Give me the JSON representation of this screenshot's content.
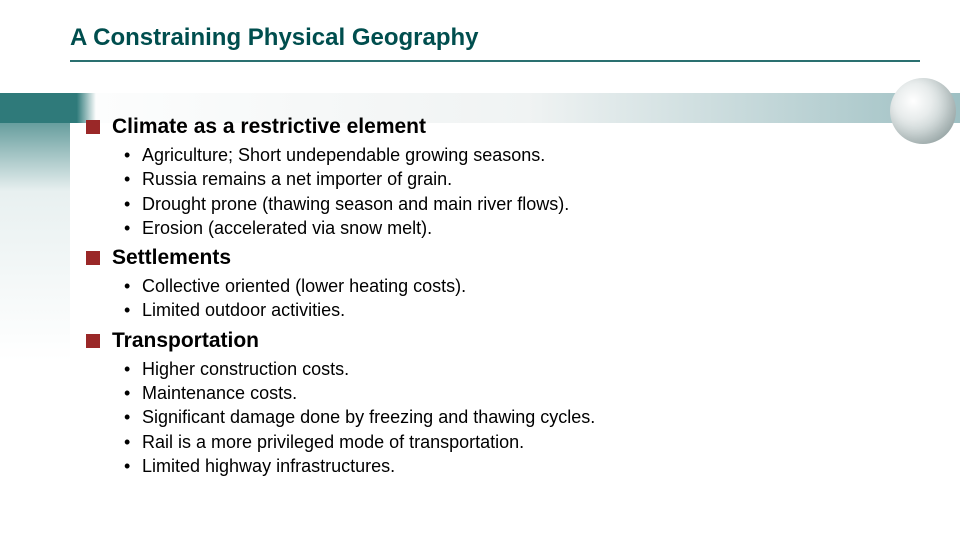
{
  "title": "A Constraining Physical Geography",
  "sections": [
    {
      "heading": "Climate as a restrictive element",
      "bullets": [
        "Agriculture; Short undependable growing seasons.",
        "Russia remains a net importer of grain.",
        "Drought prone (thawing season and main river flows).",
        "Erosion (accelerated via snow melt)."
      ]
    },
    {
      "heading": "Settlements",
      "bullets": [
        "Collective oriented (lower heating costs).",
        "Limited outdoor activities."
      ]
    },
    {
      "heading": "Transportation",
      "bullets": [
        "Higher construction costs.",
        "Maintenance costs.",
        "Significant damage done by freezing and thawing cycles.",
        "Rail is a more privileged mode of transportation.",
        "Limited highway infrastructures."
      ]
    }
  ],
  "colors": {
    "title_color": "#004e4e",
    "underline_color": "#2a7070",
    "bullet_square": "#9a2828",
    "band_teal": "#2f7a7a"
  },
  "typography": {
    "title_fontsize": 24,
    "section_fontsize": 21,
    "bullet_fontsize": 18
  }
}
